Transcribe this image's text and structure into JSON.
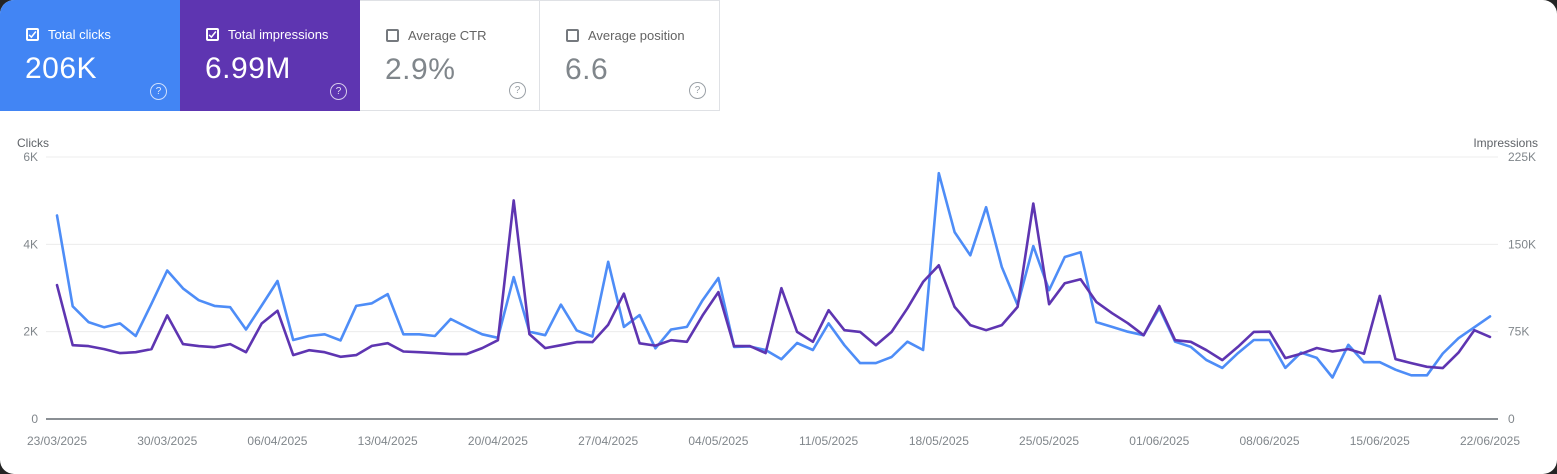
{
  "cards": [
    {
      "label": "Total clicks",
      "value": "206K",
      "checked": true,
      "color": "#4285f4"
    },
    {
      "label": "Total impressions",
      "value": "6.99M",
      "checked": true,
      "color": "#5e35b1"
    },
    {
      "label": "Average CTR",
      "value": "2.9%",
      "checked": false,
      "color": null
    },
    {
      "label": "Average position",
      "value": "6.6",
      "checked": false,
      "color": null
    }
  ],
  "chart_data": {
    "type": "line",
    "frequency": "daily",
    "grid": true,
    "left_axis": {
      "title": "Clicks",
      "ticks": [
        "6K",
        "4K",
        "2K",
        "0"
      ],
      "max": 6000,
      "min": 0
    },
    "right_axis": {
      "title": "Impressions",
      "ticks": [
        "225K",
        "150K",
        "75K",
        "0"
      ],
      "max": 225000,
      "min": 0
    },
    "x_tick_labels": [
      "23/03/2025",
      "30/03/2025",
      "06/04/2025",
      "13/04/2025",
      "20/04/2025",
      "27/04/2025",
      "04/05/2025",
      "11/05/2025",
      "18/05/2025",
      "25/05/2025",
      "01/06/2025",
      "08/06/2025",
      "15/06/2025",
      "22/06/2025"
    ],
    "x_range": {
      "start": "23/03/2025",
      "end": "22/06/2025",
      "days": 92
    },
    "series": [
      {
        "name": "Clicks",
        "axis": "left",
        "color": "#4e8df7",
        "values": [
          4660,
          2580,
          2220,
          2100,
          2190,
          1900,
          2640,
          3400,
          2990,
          2720,
          2590,
          2560,
          2050,
          2600,
          3160,
          1810,
          1900,
          1940,
          1800,
          2590,
          2650,
          2860,
          1940,
          1940,
          1900,
          2290,
          2110,
          1940,
          1860,
          3250,
          2000,
          1920,
          2620,
          2030,
          1890,
          3600,
          2110,
          2380,
          1620,
          2050,
          2110,
          2720,
          3230,
          1650,
          1660,
          1580,
          1370,
          1740,
          1580,
          2190,
          1690,
          1280,
          1280,
          1420,
          1770,
          1580,
          5630,
          4280,
          3750,
          4850,
          3480,
          2610,
          3960,
          2950,
          3710,
          3820,
          2220,
          2110,
          2000,
          1920,
          2540,
          1770,
          1650,
          1350,
          1170,
          1510,
          1810,
          1810,
          1170,
          1520,
          1400,
          950,
          1700,
          1300,
          1300,
          1130,
          1000,
          1000,
          1500,
          1850,
          2100,
          2350
        ]
      },
      {
        "name": "Impressions",
        "axis": "right",
        "color": "#5e35b1",
        "values": [
          115000,
          63400,
          62600,
          60000,
          56600,
          57400,
          60000,
          89000,
          64300,
          62600,
          61700,
          64300,
          57400,
          82000,
          93000,
          54900,
          59100,
          57400,
          53400,
          54900,
          62800,
          65100,
          58000,
          57400,
          56600,
          55700,
          55700,
          60900,
          67700,
          187700,
          72900,
          60900,
          63400,
          66000,
          66000,
          81000,
          107700,
          65000,
          63000,
          67700,
          66300,
          89000,
          109000,
          62600,
          62600,
          56600,
          112300,
          74800,
          66300,
          93400,
          76300,
          74800,
          63400,
          74800,
          95100,
          117700,
          132000,
          96300,
          80600,
          76300,
          80600,
          96300,
          185100,
          98600,
          116600,
          120000,
          100600,
          90900,
          82300,
          72000,
          97000,
          67700,
          66300,
          59100,
          50600,
          62000,
          74800,
          75000,
          52300,
          56000,
          61000,
          58000,
          60000,
          56000,
          105700,
          51400,
          48000,
          44800,
          43700,
          57000,
          76300,
          70500
        ]
      }
    ]
  }
}
